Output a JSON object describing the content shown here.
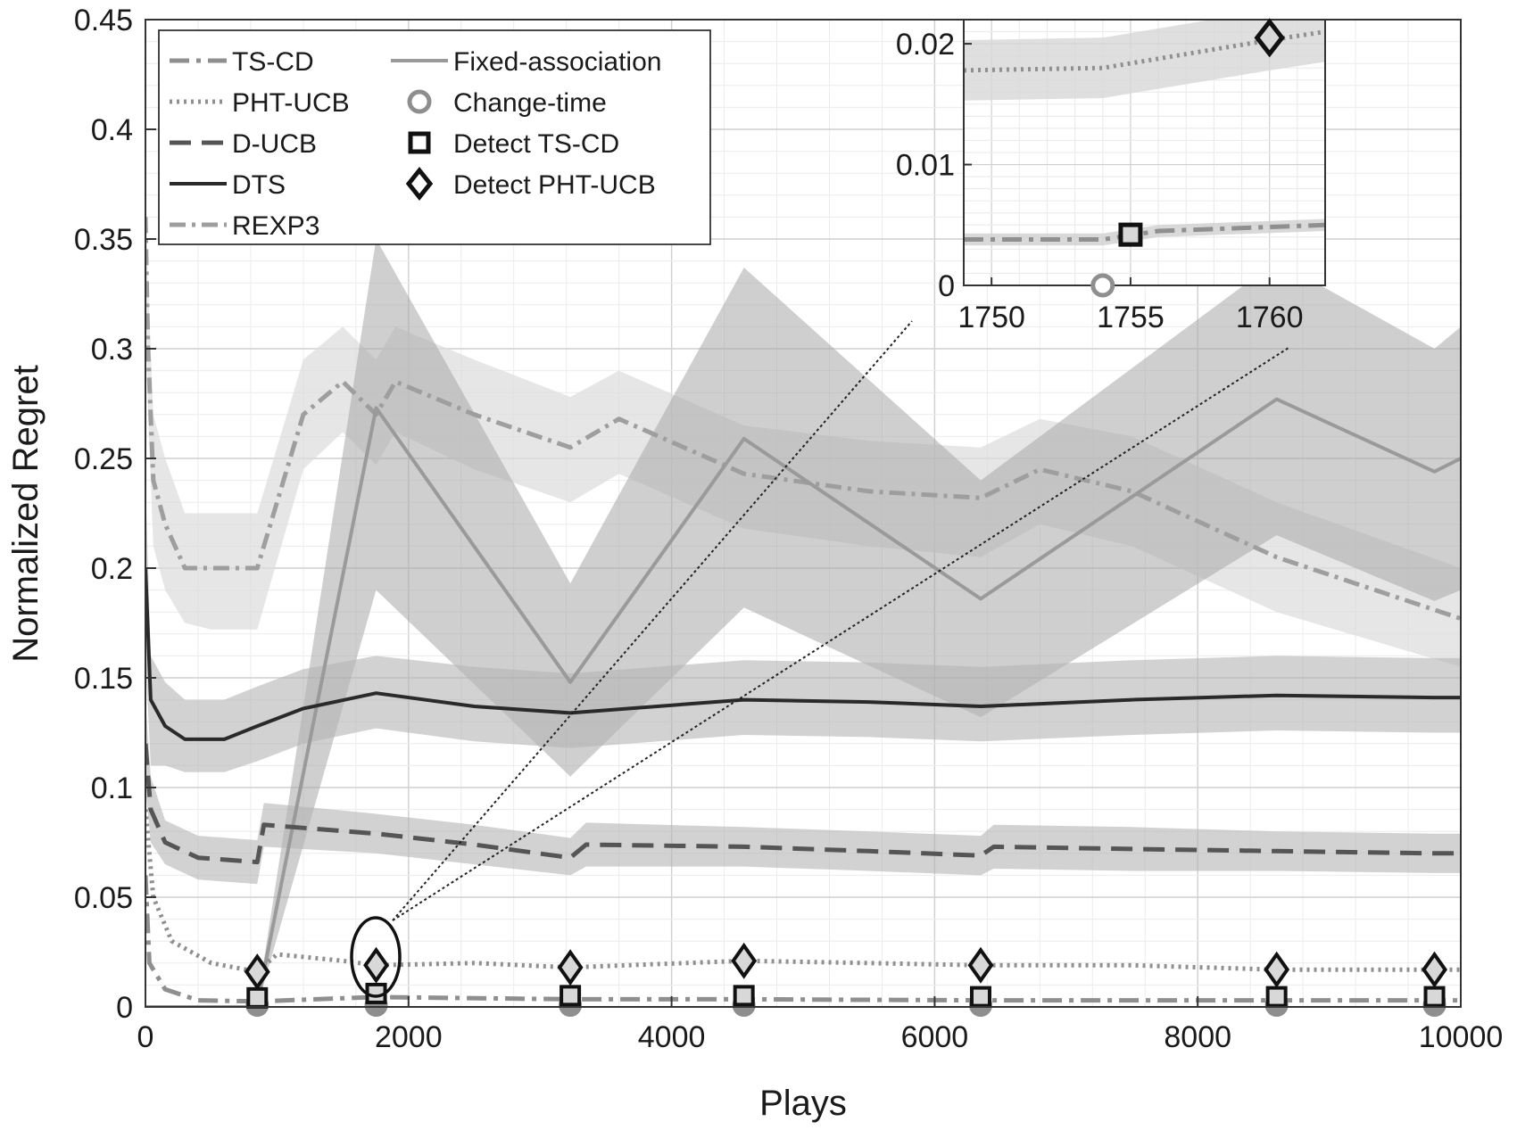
{
  "chart_data": {
    "type": "line",
    "title": "",
    "xlabel": "Plays",
    "ylabel": "Normalized Regret",
    "xlim": [
      0,
      10000
    ],
    "ylim": [
      0,
      0.45
    ],
    "grid": true,
    "legend_position": "top-left",
    "xticks": [
      0,
      2000,
      4000,
      6000,
      8000,
      10000
    ],
    "xtick_labels": [
      "0",
      "2000",
      "4000",
      "6000",
      "8000",
      "10000"
    ],
    "yticks": [
      0,
      0.05,
      0.1,
      0.15,
      0.2,
      0.25,
      0.3,
      0.35,
      0.4,
      0.45
    ],
    "ytick_labels": [
      "0",
      "0.05",
      "0.1",
      "0.15",
      "0.2",
      "0.25",
      "0.3",
      "0.35",
      "0.4",
      "0.45"
    ],
    "change_times": [
      850,
      1754,
      3230,
      4550,
      6350,
      8600,
      9800
    ],
    "series": [
      {
        "name": "TS-CD",
        "style": "dash-dot",
        "color": "#8f8f8f",
        "x": [
          0,
          30,
          150,
          400,
          850,
          1754,
          3230,
          4550,
          6350,
          8600,
          9800,
          10000
        ],
        "y": [
          0.06,
          0.02,
          0.008,
          0.003,
          0.0025,
          0.0045,
          0.0035,
          0.0035,
          0.003,
          0.003,
          0.003,
          0.003
        ]
      },
      {
        "name": "PHT-UCB",
        "style": "dotted",
        "color": "#8f8f8f",
        "x": [
          0,
          60,
          200,
          500,
          850,
          1000,
          1500,
          1754,
          2500,
          3230,
          4550,
          5500,
          6350,
          7500,
          8600,
          9800,
          10000
        ],
        "y": [
          0.09,
          0.05,
          0.03,
          0.02,
          0.016,
          0.024,
          0.021,
          0.019,
          0.02,
          0.018,
          0.021,
          0.02,
          0.019,
          0.019,
          0.017,
          0.017,
          0.017
        ]
      },
      {
        "name": "D-UCB",
        "style": "dashed",
        "color": "#555555",
        "x": [
          0,
          40,
          150,
          400,
          850,
          900,
          1754,
          2500,
          3230,
          3350,
          4550,
          5500,
          6350,
          6450,
          7500,
          8600,
          9800,
          10000
        ],
        "y": [
          0.12,
          0.09,
          0.075,
          0.068,
          0.066,
          0.083,
          0.079,
          0.074,
          0.068,
          0.074,
          0.073,
          0.071,
          0.069,
          0.073,
          0.072,
          0.071,
          0.07,
          0.07
        ],
        "band_low": [
          0.1,
          0.075,
          0.065,
          0.058,
          0.056,
          0.073,
          0.07,
          0.065,
          0.06,
          0.064,
          0.064,
          0.062,
          0.06,
          0.063,
          0.062,
          0.062,
          0.061,
          0.061
        ],
        "band_high": [
          0.14,
          0.105,
          0.085,
          0.078,
          0.076,
          0.093,
          0.088,
          0.083,
          0.077,
          0.084,
          0.082,
          0.08,
          0.078,
          0.083,
          0.082,
          0.08,
          0.079,
          0.079
        ]
      },
      {
        "name": "DTS",
        "style": "solid",
        "color": "#2a2a2a",
        "x": [
          0,
          40,
          150,
          300,
          600,
          850,
          1200,
          1754,
          2500,
          3230,
          4550,
          5500,
          6350,
          7500,
          8600,
          9800,
          10000
        ],
        "y": [
          0.2,
          0.14,
          0.128,
          0.122,
          0.122,
          0.128,
          0.136,
          0.143,
          0.137,
          0.134,
          0.14,
          0.139,
          0.137,
          0.14,
          0.142,
          0.141,
          0.141
        ],
        "band_low": [
          0.16,
          0.11,
          0.11,
          0.107,
          0.107,
          0.112,
          0.12,
          0.127,
          0.121,
          0.118,
          0.124,
          0.123,
          0.121,
          0.124,
          0.126,
          0.125,
          0.125
        ],
        "band_high": [
          0.24,
          0.16,
          0.148,
          0.14,
          0.14,
          0.146,
          0.154,
          0.16,
          0.155,
          0.152,
          0.158,
          0.157,
          0.155,
          0.158,
          0.16,
          0.159,
          0.159
        ]
      },
      {
        "name": "REXP3",
        "style": "dash-dot",
        "color": "#9e9e9e",
        "x": [
          0,
          20,
          60,
          150,
          300,
          500,
          850,
          1200,
          1500,
          1754,
          1900,
          2500,
          3230,
          3600,
          4550,
          5500,
          6350,
          6800,
          7500,
          8600,
          10000
        ],
        "y": [
          0.36,
          0.3,
          0.24,
          0.22,
          0.2,
          0.2,
          0.2,
          0.27,
          0.285,
          0.27,
          0.285,
          0.27,
          0.255,
          0.268,
          0.243,
          0.235,
          0.232,
          0.245,
          0.235,
          0.205,
          0.177
        ],
        "band_low": [
          0.34,
          0.27,
          0.21,
          0.19,
          0.175,
          0.172,
          0.172,
          0.245,
          0.262,
          0.247,
          0.262,
          0.245,
          0.23,
          0.243,
          0.218,
          0.21,
          0.205,
          0.22,
          0.21,
          0.18,
          0.155
        ],
        "band_high": [
          0.38,
          0.33,
          0.27,
          0.25,
          0.225,
          0.225,
          0.225,
          0.295,
          0.31,
          0.295,
          0.31,
          0.295,
          0.278,
          0.29,
          0.265,
          0.258,
          0.255,
          0.268,
          0.26,
          0.23,
          0.2
        ]
      },
      {
        "name": "Fixed-association",
        "style": "solid",
        "color": "#9a9a9a",
        "x": [
          0,
          840,
          850,
          1754,
          3230,
          4550,
          6350,
          8600,
          9800,
          10000
        ],
        "y": [
          0,
          0,
          0.001,
          0.273,
          0.148,
          0.259,
          0.186,
          0.277,
          0.244,
          0.25
        ],
        "band_low": [
          0,
          0,
          0,
          0.19,
          0.105,
          0.182,
          0.132,
          0.215,
          0.185,
          0.19
        ],
        "band_high": [
          0,
          0,
          0.002,
          0.35,
          0.193,
          0.337,
          0.24,
          0.34,
          0.3,
          0.31
        ]
      }
    ],
    "legend": [
      {
        "label": "TS-CD",
        "marker": "dash-dot"
      },
      {
        "label": "PHT-UCB",
        "marker": "dotted"
      },
      {
        "label": "D-UCB",
        "marker": "dashed"
      },
      {
        "label": "DTS",
        "marker": "solid-dark"
      },
      {
        "label": "REXP3",
        "marker": "dash-dot-light"
      },
      {
        "label": "Fixed-association",
        "marker": "solid-light"
      },
      {
        "label": "Change-time",
        "marker": "circle"
      },
      {
        "label": "Detect TS-CD",
        "marker": "square"
      },
      {
        "label": "Detect PHT-UCB",
        "marker": "diamond"
      }
    ],
    "inset": {
      "xlim": [
        1749,
        1762
      ],
      "ylim": [
        0,
        0.022
      ],
      "xticks": [
        1750,
        1755,
        1760
      ],
      "xtick_labels": [
        "1750",
        "1755",
        "1760"
      ],
      "yticks": [
        0,
        0.01,
        0.02
      ],
      "ytick_labels": [
        "0",
        "0.01",
        "0.02"
      ],
      "ts_cd": {
        "x": [
          1749,
          1754,
          1756,
          1762
        ],
        "y": [
          0.0038,
          0.0038,
          0.0045,
          0.005
        ]
      },
      "pht_ucb": {
        "x": [
          1749,
          1754,
          1760,
          1762
        ],
        "y": [
          0.0178,
          0.018,
          0.0203,
          0.021
        ]
      },
      "change_time": 1754,
      "detect_ts_cd": {
        "x": 1755,
        "y": 0.0042
      },
      "detect_pht_ucb": {
        "x": 1760,
        "y": 0.0205
      }
    }
  }
}
